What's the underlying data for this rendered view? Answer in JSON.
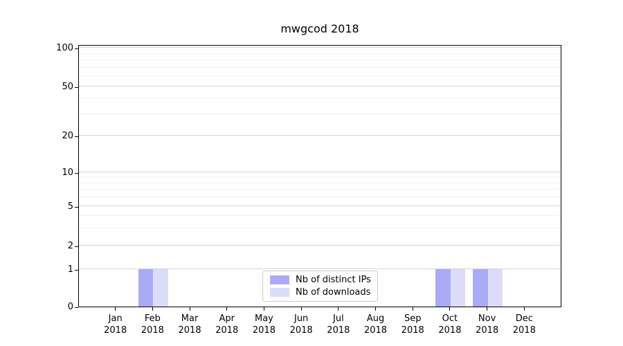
{
  "chart_data": {
    "type": "bar",
    "title": "mwgcod 2018",
    "categories": [
      "Jan",
      "Feb",
      "Mar",
      "Apr",
      "May",
      "Jun",
      "Jul",
      "Aug",
      "Sep",
      "Oct",
      "Nov",
      "Dec"
    ],
    "category_year": "2018",
    "series": [
      {
        "name": "Nb of distinct IPs",
        "color": "#aaabf5",
        "values": [
          0,
          1,
          0,
          0,
          0,
          0,
          0,
          0,
          0,
          1,
          1,
          0
        ]
      },
      {
        "name": "Nb of downloads",
        "color": "#dcdcf8",
        "values": [
          0,
          1,
          0,
          0,
          0,
          0,
          0,
          0,
          0,
          1,
          1,
          0
        ]
      }
    ],
    "yscale": "symlog",
    "yticks": [
      0,
      1,
      2,
      5,
      10,
      20,
      50,
      100
    ],
    "ylim": [
      0,
      105
    ],
    "xlabel": "",
    "ylabel": "",
    "grid": "horizontal major and minor gridlines",
    "legend_position": "lower center",
    "colors": {
      "grid_major": "#d4d4d4",
      "grid_minor": "#f0f0f0",
      "axis": "#000000",
      "background": "#ffffff"
    }
  }
}
